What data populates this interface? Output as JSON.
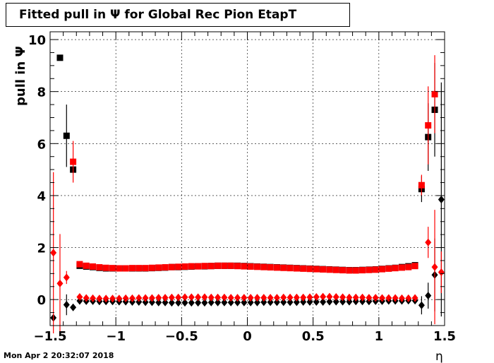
{
  "title": "Fitted pull in  Ψ  for Global Rec Pion EtapT",
  "timestamp": "Mon Apr  2 20:32:07 2018",
  "colors": {
    "series_black": "#000000",
    "series_red": "#ff0000"
  },
  "chart_data": {
    "type": "scatter",
    "title": "Fitted pull in  Ψ  for Global Rec Pion EtapT",
    "xlabel": "η",
    "ylabel": "pull in Ψ",
    "xlim": [
      -1.5,
      1.5
    ],
    "ylim": [
      -1,
      10.3
    ],
    "x_ticks": [
      {
        "value": -1.5,
        "label": "−1.5"
      },
      {
        "value": -1,
        "label": "−1"
      },
      {
        "value": -0.5,
        "label": "−0.5"
      },
      {
        "value": 0,
        "label": "0"
      },
      {
        "value": 0.5,
        "label": "0.5"
      },
      {
        "value": 1,
        "label": "1"
      },
      {
        "value": 1.5,
        "label": "1.5"
      }
    ],
    "y_ticks": [
      {
        "value": 0,
        "label": "0"
      },
      {
        "value": 2,
        "label": "2"
      },
      {
        "value": 4,
        "label": "4"
      },
      {
        "value": 6,
        "label": "6"
      },
      {
        "value": 8,
        "label": "8"
      },
      {
        "value": 10,
        "label": "10"
      }
    ],
    "series": [
      {
        "marker": "square",
        "color": "#000000",
        "points": [
          {
            "x": -1.425,
            "y": 9.3
          },
          {
            "x": -1.375,
            "y": 6.3,
            "err": 1.2
          },
          {
            "x": -1.325,
            "y": 5.0
          },
          {
            "x": -1.275,
            "y": 1.3
          },
          {
            "x": -1.225,
            "y": 1.27
          },
          {
            "x": -1.175,
            "y": 1.25
          },
          {
            "x": -1.125,
            "y": 1.22
          },
          {
            "x": -1.075,
            "y": 1.2
          },
          {
            "x": -1.025,
            "y": 1.2
          },
          {
            "x": -0.975,
            "y": 1.2
          },
          {
            "x": -0.925,
            "y": 1.2
          },
          {
            "x": -0.875,
            "y": 1.2
          },
          {
            "x": -0.825,
            "y": 1.2
          },
          {
            "x": -0.775,
            "y": 1.2
          },
          {
            "x": -0.725,
            "y": 1.21
          },
          {
            "x": -0.675,
            "y": 1.22
          },
          {
            "x": -0.625,
            "y": 1.23
          },
          {
            "x": -0.575,
            "y": 1.25
          },
          {
            "x": -0.525,
            "y": 1.25
          },
          {
            "x": -0.475,
            "y": 1.26
          },
          {
            "x": -0.425,
            "y": 1.27
          },
          {
            "x": -0.375,
            "y": 1.28
          },
          {
            "x": -0.325,
            "y": 1.28
          },
          {
            "x": -0.275,
            "y": 1.29
          },
          {
            "x": -0.225,
            "y": 1.3
          },
          {
            "x": -0.175,
            "y": 1.3
          },
          {
            "x": -0.125,
            "y": 1.3
          },
          {
            "x": -0.075,
            "y": 1.3
          },
          {
            "x": -0.025,
            "y": 1.29
          },
          {
            "x": 0.025,
            "y": 1.28
          },
          {
            "x": 0.075,
            "y": 1.27
          },
          {
            "x": 0.125,
            "y": 1.26
          },
          {
            "x": 0.175,
            "y": 1.25
          },
          {
            "x": 0.225,
            "y": 1.24
          },
          {
            "x": 0.275,
            "y": 1.23
          },
          {
            "x": 0.325,
            "y": 1.22
          },
          {
            "x": 0.375,
            "y": 1.21
          },
          {
            "x": 0.425,
            "y": 1.2
          },
          {
            "x": 0.475,
            "y": 1.19
          },
          {
            "x": 0.525,
            "y": 1.18
          },
          {
            "x": 0.575,
            "y": 1.17
          },
          {
            "x": 0.625,
            "y": 1.16
          },
          {
            "x": 0.675,
            "y": 1.15
          },
          {
            "x": 0.725,
            "y": 1.14
          },
          {
            "x": 0.775,
            "y": 1.13
          },
          {
            "x": 0.825,
            "y": 1.13
          },
          {
            "x": 0.875,
            "y": 1.14
          },
          {
            "x": 0.925,
            "y": 1.15
          },
          {
            "x": 0.975,
            "y": 1.16
          },
          {
            "x": 1.025,
            "y": 1.18
          },
          {
            "x": 1.075,
            "y": 1.2
          },
          {
            "x": 1.125,
            "y": 1.22
          },
          {
            "x": 1.175,
            "y": 1.25
          },
          {
            "x": 1.225,
            "y": 1.28
          },
          {
            "x": 1.275,
            "y": 1.32
          },
          {
            "x": 1.325,
            "y": 4.25,
            "err": 0.5
          },
          {
            "x": 1.375,
            "y": 6.25,
            "err": 1.3
          },
          {
            "x": 1.425,
            "y": 7.3,
            "err": 1.8
          }
        ]
      },
      {
        "marker": "square",
        "color": "#ff0000",
        "points": [
          {
            "x": -1.325,
            "y": 5.3,
            "err": 0.8
          },
          {
            "x": -1.275,
            "y": 1.36
          },
          {
            "x": -1.225,
            "y": 1.3
          },
          {
            "x": -1.175,
            "y": 1.27
          },
          {
            "x": -1.125,
            "y": 1.24
          },
          {
            "x": -1.075,
            "y": 1.22
          },
          {
            "x": -1.025,
            "y": 1.21
          },
          {
            "x": -0.975,
            "y": 1.2
          },
          {
            "x": -0.925,
            "y": 1.2
          },
          {
            "x": -0.875,
            "y": 1.21
          },
          {
            "x": -0.825,
            "y": 1.21
          },
          {
            "x": -0.775,
            "y": 1.21
          },
          {
            "x": -0.725,
            "y": 1.22
          },
          {
            "x": -0.675,
            "y": 1.23
          },
          {
            "x": -0.625,
            "y": 1.24
          },
          {
            "x": -0.575,
            "y": 1.25
          },
          {
            "x": -0.525,
            "y": 1.26
          },
          {
            "x": -0.475,
            "y": 1.27
          },
          {
            "x": -0.425,
            "y": 1.28
          },
          {
            "x": -0.375,
            "y": 1.28
          },
          {
            "x": -0.325,
            "y": 1.29
          },
          {
            "x": -0.275,
            "y": 1.29
          },
          {
            "x": -0.225,
            "y": 1.3
          },
          {
            "x": -0.175,
            "y": 1.3
          },
          {
            "x": -0.125,
            "y": 1.3
          },
          {
            "x": -0.075,
            "y": 1.29
          },
          {
            "x": -0.025,
            "y": 1.28
          },
          {
            "x": 0.025,
            "y": 1.27
          },
          {
            "x": 0.075,
            "y": 1.26
          },
          {
            "x": 0.125,
            "y": 1.25
          },
          {
            "x": 0.175,
            "y": 1.24
          },
          {
            "x": 0.225,
            "y": 1.23
          },
          {
            "x": 0.275,
            "y": 1.22
          },
          {
            "x": 0.325,
            "y": 1.21
          },
          {
            "x": 0.375,
            "y": 1.2
          },
          {
            "x": 0.425,
            "y": 1.19
          },
          {
            "x": 0.475,
            "y": 1.18
          },
          {
            "x": 0.525,
            "y": 1.17
          },
          {
            "x": 0.575,
            "y": 1.16
          },
          {
            "x": 0.625,
            "y": 1.15
          },
          {
            "x": 0.675,
            "y": 1.14
          },
          {
            "x": 0.725,
            "y": 1.13
          },
          {
            "x": 0.775,
            "y": 1.12
          },
          {
            "x": 0.825,
            "y": 1.12
          },
          {
            "x": 0.875,
            "y": 1.13
          },
          {
            "x": 0.925,
            "y": 1.14
          },
          {
            "x": 0.975,
            "y": 1.15
          },
          {
            "x": 1.025,
            "y": 1.17
          },
          {
            "x": 1.075,
            "y": 1.19
          },
          {
            "x": 1.125,
            "y": 1.21
          },
          {
            "x": 1.175,
            "y": 1.23
          },
          {
            "x": 1.225,
            "y": 1.25
          },
          {
            "x": 1.275,
            "y": 1.29
          },
          {
            "x": 1.325,
            "y": 4.4,
            "err": 0.4
          },
          {
            "x": 1.375,
            "y": 6.7,
            "err": 1.5
          },
          {
            "x": 1.425,
            "y": 7.9,
            "err": 1.5
          }
        ]
      },
      {
        "marker": "diamond",
        "color": "#000000",
        "points": [
          {
            "x": -1.475,
            "y": -0.7
          },
          {
            "x": -1.375,
            "y": -0.2,
            "err": 0.4
          },
          {
            "x": -1.325,
            "y": -0.3
          },
          {
            "x": -1.275,
            "y": -0.05
          },
          {
            "x": -1.225,
            "y": -0.06
          },
          {
            "x": -1.175,
            "y": -0.06
          },
          {
            "x": -1.125,
            "y": -0.07
          },
          {
            "x": -1.075,
            "y": -0.07
          },
          {
            "x": -1.025,
            "y": -0.07
          },
          {
            "x": -0.975,
            "y": -0.08
          },
          {
            "x": -0.925,
            "y": -0.08
          },
          {
            "x": -0.875,
            "y": -0.09
          },
          {
            "x": -0.825,
            "y": -0.09
          },
          {
            "x": -0.775,
            "y": -0.1
          },
          {
            "x": -0.725,
            "y": -0.1
          },
          {
            "x": -0.675,
            "y": -0.11
          },
          {
            "x": -0.625,
            "y": -0.11
          },
          {
            "x": -0.575,
            "y": -0.12
          },
          {
            "x": -0.525,
            "y": -0.12
          },
          {
            "x": -0.475,
            "y": -0.12
          },
          {
            "x": -0.425,
            "y": -0.12
          },
          {
            "x": -0.375,
            "y": -0.12
          },
          {
            "x": -0.325,
            "y": -0.12
          },
          {
            "x": -0.275,
            "y": -0.11
          },
          {
            "x": -0.225,
            "y": -0.11
          },
          {
            "x": -0.175,
            "y": -0.11
          },
          {
            "x": -0.125,
            "y": -0.11
          },
          {
            "x": -0.075,
            "y": -0.11
          },
          {
            "x": -0.025,
            "y": -0.11
          },
          {
            "x": 0.025,
            "y": -0.11
          },
          {
            "x": 0.075,
            "y": -0.11
          },
          {
            "x": 0.125,
            "y": -0.1
          },
          {
            "x": 0.175,
            "y": -0.1
          },
          {
            "x": 0.225,
            "y": -0.1
          },
          {
            "x": 0.275,
            "y": -0.1
          },
          {
            "x": 0.325,
            "y": -0.1
          },
          {
            "x": 0.375,
            "y": -0.1
          },
          {
            "x": 0.425,
            "y": -0.09
          },
          {
            "x": 0.475,
            "y": -0.09
          },
          {
            "x": 0.525,
            "y": -0.09
          },
          {
            "x": 0.575,
            "y": -0.09
          },
          {
            "x": 0.625,
            "y": -0.08
          },
          {
            "x": 0.675,
            "y": -0.08
          },
          {
            "x": 0.725,
            "y": -0.08
          },
          {
            "x": 0.775,
            "y": -0.08
          },
          {
            "x": 0.825,
            "y": -0.07
          },
          {
            "x": 0.875,
            "y": -0.07
          },
          {
            "x": 0.925,
            "y": -0.07
          },
          {
            "x": 0.975,
            "y": -0.06
          },
          {
            "x": 1.025,
            "y": -0.06
          },
          {
            "x": 1.075,
            "y": -0.05
          },
          {
            "x": 1.125,
            "y": -0.05
          },
          {
            "x": 1.175,
            "y": -0.05
          },
          {
            "x": 1.225,
            "y": -0.04
          },
          {
            "x": 1.275,
            "y": -0.04
          },
          {
            "x": 1.325,
            "y": -0.22,
            "err": 0.35
          },
          {
            "x": 1.375,
            "y": 0.15,
            "err": 0.5
          },
          {
            "x": 1.425,
            "y": 0.95,
            "err": 1.4
          },
          {
            "x": 1.475,
            "y": 3.85,
            "err": 4.5
          }
        ]
      },
      {
        "marker": "diamond",
        "color": "#ff0000",
        "points": [
          {
            "x": -1.475,
            "y": 1.8,
            "err": 3.1
          },
          {
            "x": -1.425,
            "y": 0.62,
            "err": 1.9
          },
          {
            "x": -1.375,
            "y": 0.85,
            "err": 0.25
          },
          {
            "x": -1.275,
            "y": 0.1
          },
          {
            "x": -1.225,
            "y": 0.06
          },
          {
            "x": -1.175,
            "y": 0.05
          },
          {
            "x": -1.125,
            "y": 0.04
          },
          {
            "x": -1.075,
            "y": 0.04
          },
          {
            "x": -1.025,
            "y": 0.04
          },
          {
            "x": -0.975,
            "y": 0.04
          },
          {
            "x": -0.925,
            "y": 0.05
          },
          {
            "x": -0.875,
            "y": 0.05
          },
          {
            "x": -0.825,
            "y": 0.06
          },
          {
            "x": -0.775,
            "y": 0.06
          },
          {
            "x": -0.725,
            "y": 0.06
          },
          {
            "x": -0.675,
            "y": 0.07
          },
          {
            "x": -0.625,
            "y": 0.07
          },
          {
            "x": -0.575,
            "y": 0.08
          },
          {
            "x": -0.525,
            "y": 0.08
          },
          {
            "x": -0.475,
            "y": 0.09
          },
          {
            "x": -0.425,
            "y": 0.09
          },
          {
            "x": -0.375,
            "y": 0.09
          },
          {
            "x": -0.325,
            "y": 0.09
          },
          {
            "x": -0.275,
            "y": 0.08
          },
          {
            "x": -0.225,
            "y": 0.08
          },
          {
            "x": -0.175,
            "y": 0.08
          },
          {
            "x": -0.125,
            "y": 0.07
          },
          {
            "x": -0.075,
            "y": 0.07
          },
          {
            "x": -0.025,
            "y": 0.07
          },
          {
            "x": 0.025,
            "y": 0.07
          },
          {
            "x": 0.075,
            "y": 0.07
          },
          {
            "x": 0.125,
            "y": 0.07
          },
          {
            "x": 0.175,
            "y": 0.07
          },
          {
            "x": 0.225,
            "y": 0.07
          },
          {
            "x": 0.275,
            "y": 0.08
          },
          {
            "x": 0.325,
            "y": 0.08
          },
          {
            "x": 0.375,
            "y": 0.08
          },
          {
            "x": 0.425,
            "y": 0.08
          },
          {
            "x": 0.475,
            "y": 0.09
          },
          {
            "x": 0.525,
            "y": 0.1
          },
          {
            "x": 0.575,
            "y": 0.11
          },
          {
            "x": 0.625,
            "y": 0.11
          },
          {
            "x": 0.675,
            "y": 0.1
          },
          {
            "x": 0.725,
            "y": 0.09
          },
          {
            "x": 0.775,
            "y": 0.08
          },
          {
            "x": 0.825,
            "y": 0.08
          },
          {
            "x": 0.875,
            "y": 0.08
          },
          {
            "x": 0.925,
            "y": 0.07
          },
          {
            "x": 0.975,
            "y": 0.07
          },
          {
            "x": 1.025,
            "y": 0.06
          },
          {
            "x": 1.075,
            "y": 0.06
          },
          {
            "x": 1.125,
            "y": 0.06
          },
          {
            "x": 1.175,
            "y": 0.05
          },
          {
            "x": 1.225,
            "y": 0.05
          },
          {
            "x": 1.275,
            "y": 0.06
          },
          {
            "x": 1.375,
            "y": 2.2,
            "err": 0.6
          },
          {
            "x": 1.425,
            "y": 1.25,
            "err": 2.2
          },
          {
            "x": 1.475,
            "y": 1.05,
            "err": 0.8
          }
        ]
      }
    ]
  }
}
